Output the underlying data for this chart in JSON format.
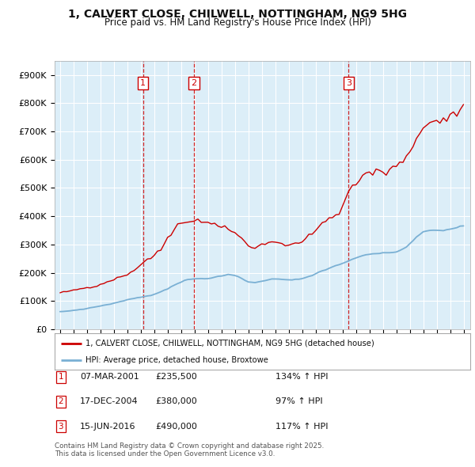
{
  "title_line1": "1, CALVERT CLOSE, CHILWELL, NOTTINGHAM, NG9 5HG",
  "title_line2": "Price paid vs. HM Land Registry's House Price Index (HPI)",
  "ylim": [
    0,
    950000
  ],
  "yticks": [
    0,
    100000,
    200000,
    300000,
    400000,
    500000,
    600000,
    700000,
    800000,
    900000
  ],
  "ytick_labels": [
    "£0",
    "£100K",
    "£200K",
    "£300K",
    "£400K",
    "£500K",
    "£600K",
    "£700K",
    "£800K",
    "£900K"
  ],
  "xlim_start": 1994.6,
  "xlim_end": 2025.5,
  "background_color": "#ffffff",
  "plot_bg_color": "#dceef8",
  "grid_color": "#ffffff",
  "red_line_color": "#cc0000",
  "blue_line_color": "#7ab0d4",
  "sale_box_color": "#cc0000",
  "legend_red_label": "1, CALVERT CLOSE, CHILWELL, NOTTINGHAM, NG9 5HG (detached house)",
  "legend_blue_label": "HPI: Average price, detached house, Broxtowe",
  "sales": [
    {
      "num": 1,
      "year": 2001.17,
      "price": 235500,
      "date": "07-MAR-2001",
      "pct": "134%",
      "arrow": "↑"
    },
    {
      "num": 2,
      "year": 2004.96,
      "price": 380000,
      "date": "17-DEC-2004",
      "pct": "97%",
      "arrow": "↑"
    },
    {
      "num": 3,
      "year": 2016.45,
      "price": 490000,
      "date": "15-JUN-2016",
      "pct": "117%",
      "arrow": "↑"
    }
  ],
  "footer_line1": "Contains HM Land Registry data © Crown copyright and database right 2025.",
  "footer_line2": "This data is licensed under the Open Government Licence v3.0.",
  "hpi_years": [
    1995.0,
    1995.25,
    1995.5,
    1995.75,
    1996.0,
    1996.25,
    1996.5,
    1996.75,
    1997.0,
    1997.25,
    1997.5,
    1997.75,
    1998.0,
    1998.25,
    1998.5,
    1998.75,
    1999.0,
    1999.25,
    1999.5,
    1999.75,
    2000.0,
    2000.25,
    2000.5,
    2000.75,
    2001.0,
    2001.25,
    2001.5,
    2001.75,
    2002.0,
    2002.25,
    2002.5,
    2002.75,
    2003.0,
    2003.25,
    2003.5,
    2003.75,
    2004.0,
    2004.25,
    2004.5,
    2004.75,
    2005.0,
    2005.25,
    2005.5,
    2005.75,
    2006.0,
    2006.25,
    2006.5,
    2006.75,
    2007.0,
    2007.25,
    2007.5,
    2007.75,
    2008.0,
    2008.25,
    2008.5,
    2008.75,
    2009.0,
    2009.25,
    2009.5,
    2009.75,
    2010.0,
    2010.25,
    2010.5,
    2010.75,
    2011.0,
    2011.25,
    2011.5,
    2011.75,
    2012.0,
    2012.25,
    2012.5,
    2012.75,
    2013.0,
    2013.25,
    2013.5,
    2013.75,
    2014.0,
    2014.25,
    2014.5,
    2014.75,
    2015.0,
    2015.25,
    2015.5,
    2015.75,
    2016.0,
    2016.25,
    2016.5,
    2016.75,
    2017.0,
    2017.25,
    2017.5,
    2017.75,
    2018.0,
    2018.25,
    2018.5,
    2018.75,
    2019.0,
    2019.25,
    2019.5,
    2019.75,
    2020.0,
    2020.25,
    2020.5,
    2020.75,
    2021.0,
    2021.25,
    2021.5,
    2021.75,
    2022.0,
    2022.25,
    2022.5,
    2022.75,
    2023.0,
    2023.25,
    2023.5,
    2023.75,
    2024.0,
    2024.25,
    2024.5,
    2024.75,
    2025.0
  ],
  "hpi_values": [
    62000,
    63000,
    64000,
    65000,
    67000,
    68000,
    70000,
    71000,
    73000,
    76000,
    78000,
    80000,
    82000,
    85000,
    87000,
    89000,
    92000,
    95000,
    98000,
    101000,
    104000,
    107000,
    109000,
    111000,
    113000,
    116000,
    118000,
    120000,
    123000,
    128000,
    133000,
    138000,
    143000,
    150000,
    157000,
    162000,
    167000,
    172000,
    175000,
    177000,
    178000,
    179000,
    179000,
    179000,
    180000,
    182000,
    184000,
    186000,
    188000,
    191000,
    193000,
    192000,
    190000,
    186000,
    180000,
    173000,
    168000,
    166000,
    165000,
    167000,
    170000,
    173000,
    175000,
    177000,
    178000,
    178000,
    177000,
    176000,
    175000,
    175000,
    176000,
    177000,
    179000,
    182000,
    186000,
    190000,
    196000,
    202000,
    207000,
    211000,
    215000,
    220000,
    225000,
    229000,
    233000,
    238000,
    243000,
    247000,
    251000,
    256000,
    260000,
    263000,
    265000,
    267000,
    268000,
    268000,
    269000,
    270000,
    271000,
    272000,
    274000,
    278000,
    284000,
    292000,
    302000,
    314000,
    325000,
    335000,
    343000,
    348000,
    350000,
    350000,
    349000,
    349000,
    350000,
    352000,
    354000,
    357000,
    360000,
    363000,
    366000
  ],
  "prop_years": [
    1995.0,
    1995.25,
    1995.5,
    1995.75,
    1996.0,
    1996.25,
    1996.5,
    1996.75,
    1997.0,
    1997.25,
    1997.5,
    1997.75,
    1998.0,
    1998.25,
    1998.5,
    1998.75,
    1999.0,
    1999.25,
    1999.5,
    1999.75,
    2000.0,
    2000.25,
    2000.5,
    2000.75,
    2001.17,
    2001.5,
    2001.75,
    2002.0,
    2002.25,
    2002.5,
    2002.75,
    2003.0,
    2003.25,
    2003.5,
    2003.75,
    2004.96,
    2005.25,
    2005.5,
    2005.75,
    2006.0,
    2006.25,
    2006.5,
    2006.75,
    2007.0,
    2007.25,
    2007.5,
    2007.75,
    2008.0,
    2008.25,
    2008.5,
    2008.75,
    2009.0,
    2009.25,
    2009.5,
    2009.75,
    2010.0,
    2010.25,
    2010.5,
    2010.75,
    2011.0,
    2011.25,
    2011.5,
    2011.75,
    2012.0,
    2012.25,
    2012.5,
    2012.75,
    2013.0,
    2013.25,
    2013.5,
    2013.75,
    2014.0,
    2014.25,
    2014.5,
    2014.75,
    2015.0,
    2015.25,
    2015.5,
    2015.75,
    2016.45,
    2016.75,
    2017.0,
    2017.25,
    2017.5,
    2017.75,
    2018.0,
    2018.25,
    2018.5,
    2018.75,
    2019.0,
    2019.25,
    2019.5,
    2019.75,
    2020.0,
    2020.25,
    2020.5,
    2020.75,
    2021.0,
    2021.25,
    2021.5,
    2021.75,
    2022.0,
    2022.25,
    2022.5,
    2022.75,
    2023.0,
    2023.25,
    2023.5,
    2023.75,
    2024.0,
    2024.25,
    2024.5,
    2024.75,
    2025.0
  ],
  "prop_values": [
    130000,
    132000,
    133000,
    135000,
    137000,
    139000,
    141000,
    143000,
    145000,
    148000,
    151000,
    154000,
    158000,
    162000,
    166000,
    170000,
    174000,
    179000,
    184000,
    189000,
    194000,
    199000,
    205000,
    220000,
    235500,
    248000,
    255000,
    262000,
    272000,
    285000,
    300000,
    318000,
    335000,
    355000,
    372000,
    380000,
    388000,
    385000,
    382000,
    378000,
    374000,
    370000,
    366000,
    362000,
    358000,
    354000,
    350000,
    342000,
    332000,
    320000,
    308000,
    296000,
    290000,
    288000,
    290000,
    295000,
    300000,
    305000,
    308000,
    310000,
    308000,
    305000,
    302000,
    300000,
    300000,
    302000,
    305000,
    310000,
    318000,
    328000,
    340000,
    352000,
    365000,
    375000,
    385000,
    392000,
    398000,
    402000,
    408000,
    490000,
    505000,
    518000,
    530000,
    540000,
    548000,
    555000,
    560000,
    562000,
    560000,
    558000,
    558000,
    560000,
    565000,
    572000,
    582000,
    595000,
    612000,
    632000,
    655000,
    678000,
    700000,
    718000,
    728000,
    735000,
    738000,
    738000,
    740000,
    745000,
    752000,
    760000,
    768000,
    775000,
    780000,
    785000
  ]
}
